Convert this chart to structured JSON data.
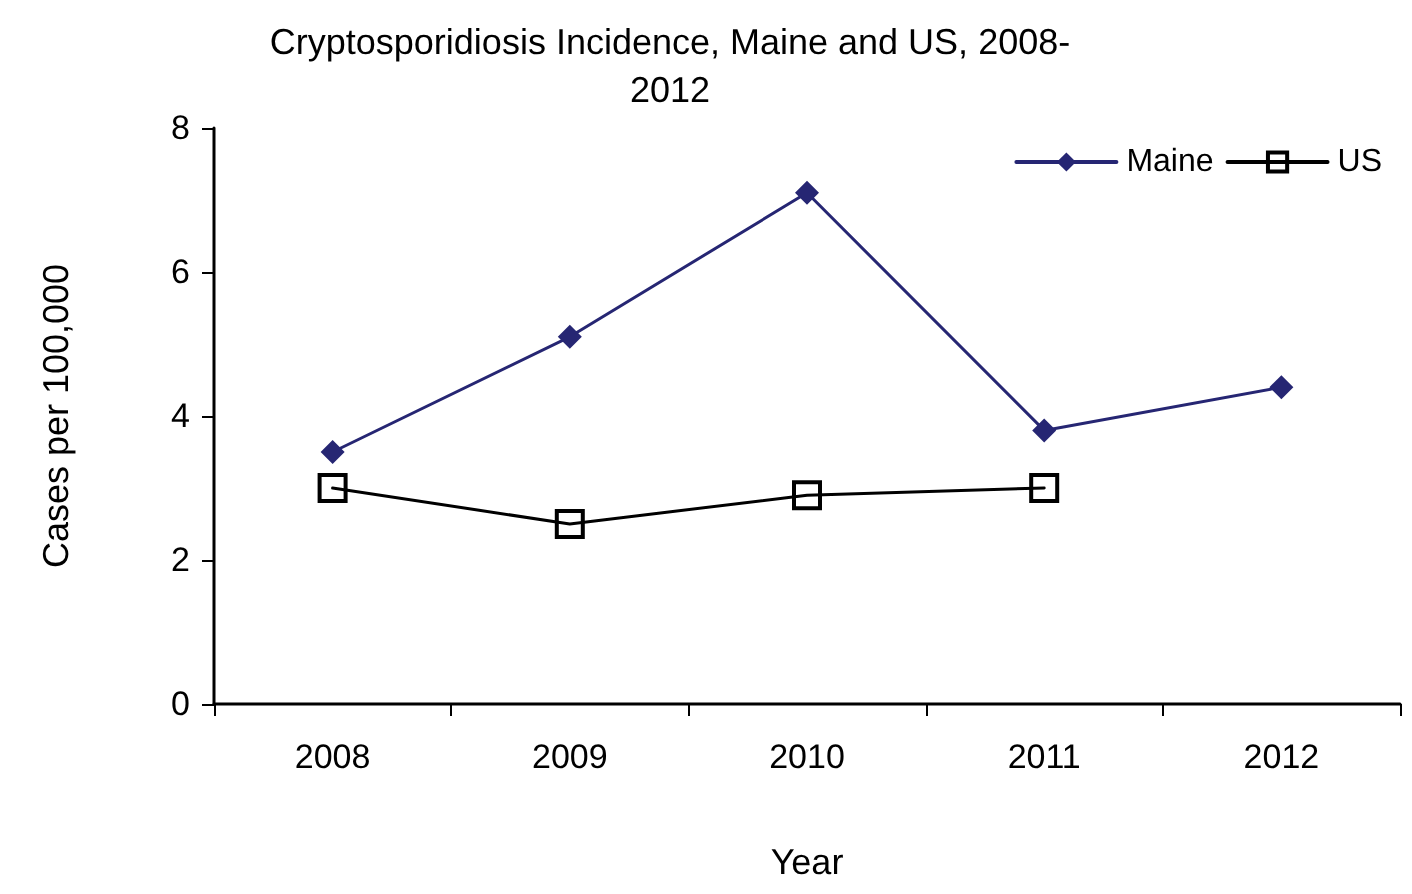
{
  "chart_data": {
    "type": "line",
    "title": "Cryptosporidiosis Incidence, Maine and US, 2008-\n2012",
    "xlabel": "Year",
    "ylabel": "Cases per 100,000",
    "categories": [
      "2008",
      "2009",
      "2010",
      "2011",
      "2012"
    ],
    "series": [
      {
        "name": "Maine",
        "color": "#262673",
        "marker": "diamond",
        "values": [
          3.5,
          5.1,
          7.1,
          3.8,
          4.4
        ]
      },
      {
        "name": "US",
        "color": "#000000",
        "marker": "square",
        "values": [
          3.0,
          2.5,
          2.9,
          3.0,
          null
        ]
      }
    ],
    "ylim": [
      0,
      8
    ],
    "yticks": [
      0,
      2,
      4,
      6,
      8
    ],
    "grid": false,
    "legend": "top right",
    "line_style": "solid"
  }
}
